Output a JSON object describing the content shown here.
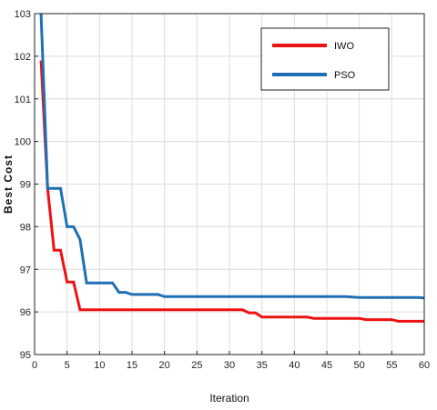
{
  "chart_data": {
    "type": "line",
    "xlabel": "Iteration",
    "ylabel": "Best Cost",
    "xlim": [
      0,
      60
    ],
    "ylim": [
      95,
      103
    ],
    "xticks": [
      0,
      5,
      10,
      15,
      20,
      25,
      30,
      35,
      40,
      45,
      50,
      55,
      60
    ],
    "yticks": [
      95,
      96,
      97,
      98,
      99,
      100,
      101,
      102,
      103
    ],
    "grid": true,
    "legend_position": "top-right",
    "series": [
      {
        "name": "IWO",
        "color": "#ee1111",
        "points": [
          [
            1,
            101.9
          ],
          [
            2,
            98.9
          ],
          [
            3,
            97.45
          ],
          [
            4,
            97.45
          ],
          [
            5,
            96.7
          ],
          [
            6,
            96.7
          ],
          [
            7,
            96.05
          ],
          [
            8,
            96.05
          ],
          [
            32,
            96.05
          ],
          [
            33,
            95.98
          ],
          [
            34,
            95.98
          ],
          [
            35,
            95.88
          ],
          [
            36,
            95.88
          ],
          [
            42,
            95.88
          ],
          [
            43,
            95.85
          ],
          [
            50,
            95.85
          ],
          [
            51,
            95.82
          ],
          [
            55,
            95.82
          ],
          [
            56,
            95.78
          ],
          [
            60,
            95.78
          ]
        ]
      },
      {
        "name": "PSO",
        "color": "#1f6fb5",
        "points": [
          [
            1,
            103.0
          ],
          [
            2,
            98.9
          ],
          [
            3,
            98.9
          ],
          [
            4,
            98.9
          ],
          [
            5,
            98.0
          ],
          [
            6,
            98.0
          ],
          [
            7,
            97.7
          ],
          [
            8,
            96.68
          ],
          [
            12,
            96.68
          ],
          [
            13,
            96.46
          ],
          [
            14,
            96.46
          ],
          [
            15,
            96.41
          ],
          [
            19,
            96.41
          ],
          [
            20,
            96.36
          ],
          [
            48,
            96.36
          ],
          [
            50,
            96.34
          ],
          [
            59,
            96.34
          ],
          [
            60,
            96.33
          ]
        ]
      }
    ]
  }
}
